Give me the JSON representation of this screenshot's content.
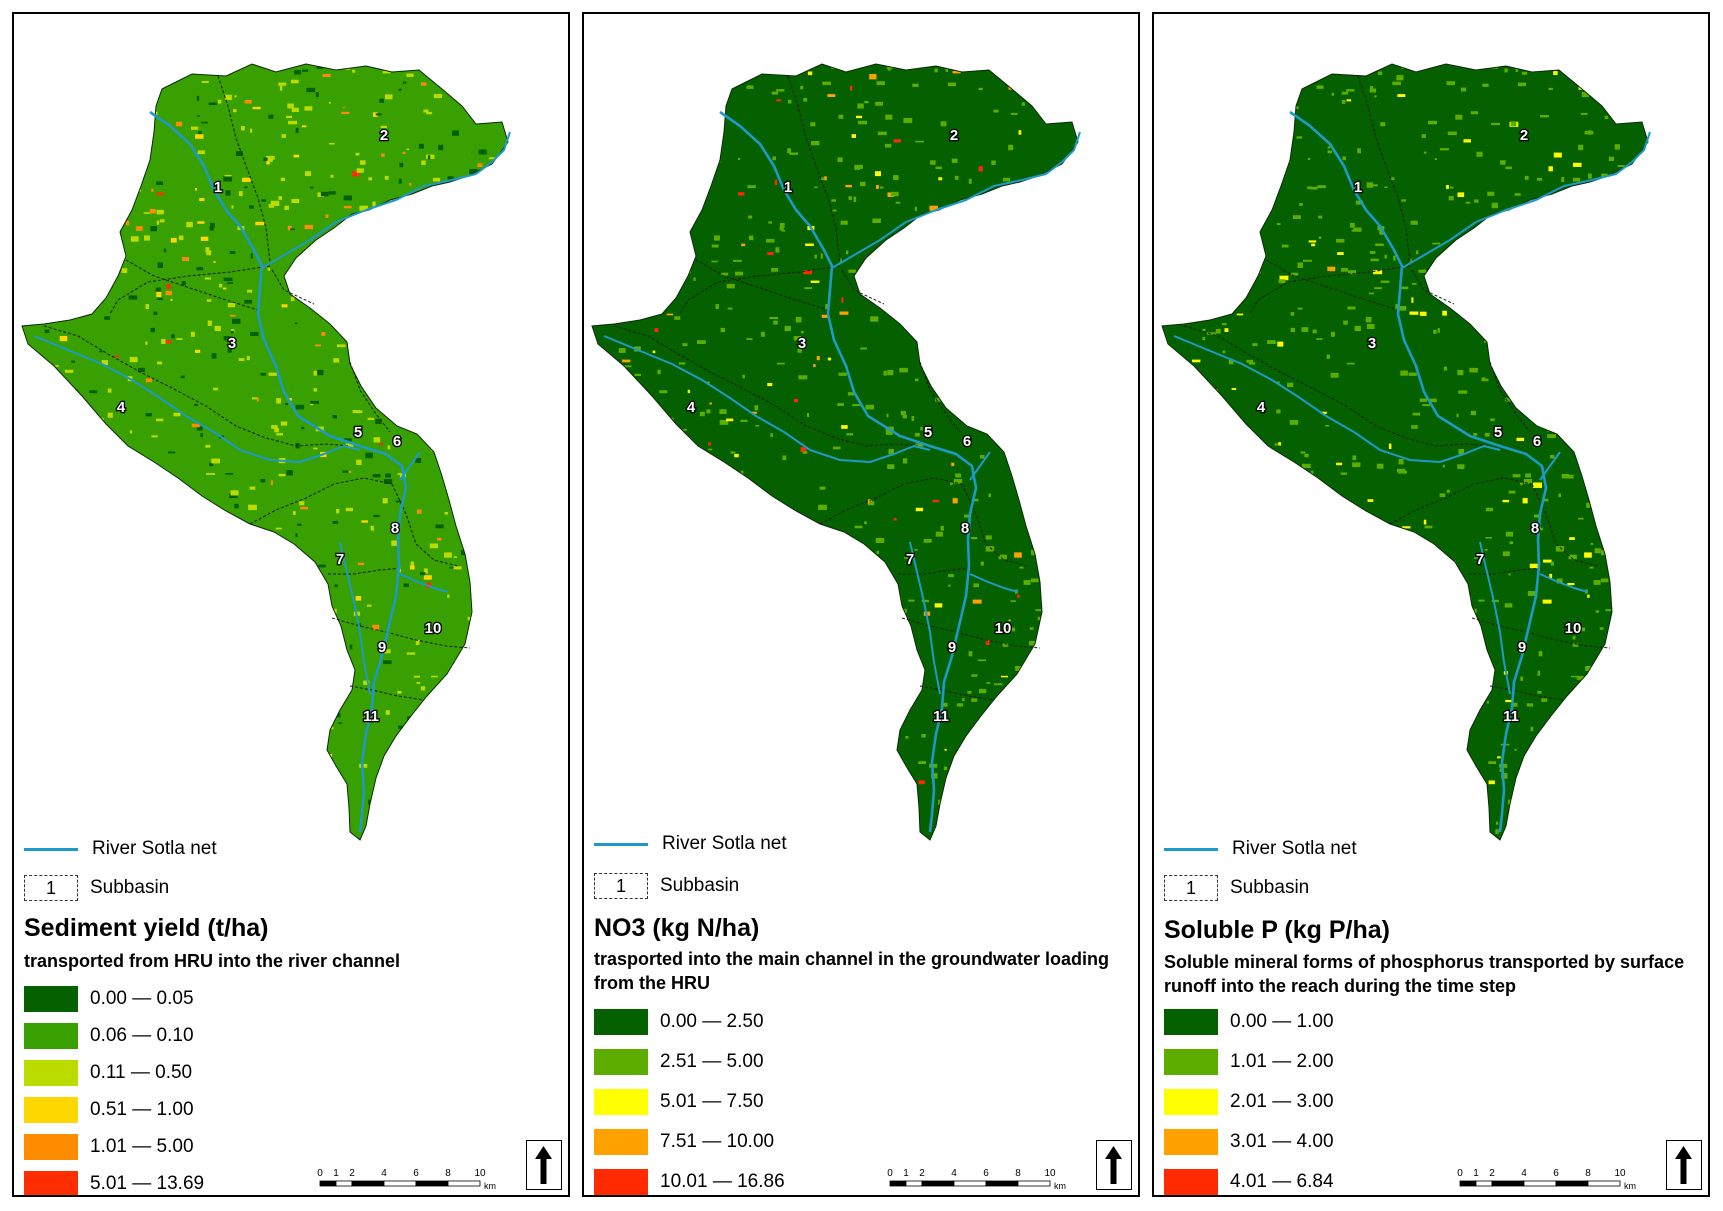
{
  "colors": {
    "river": "#1e9ac9",
    "class_sed": [
      "#056100",
      "#38a000",
      "#bcdc00",
      "#ffd700",
      "#ff8c00",
      "#ff2e00"
    ],
    "class_no3": [
      "#056100",
      "#5cad00",
      "#ffff00",
      "#ffa200",
      "#ff2a00"
    ],
    "class_p": [
      "#056100",
      "#5cad00",
      "#ffff00",
      "#ffa200",
      "#ff2a00"
    ]
  },
  "legend": {
    "river_label": "River Sotla net",
    "subbasin_label": "Subbasin",
    "subbasin_example": "1"
  },
  "scale": {
    "ticks": [
      "0",
      "1",
      "2",
      "4",
      "6",
      "8",
      "10"
    ],
    "unit": "km"
  },
  "subbasins": [
    "1",
    "2",
    "3",
    "4",
    "5",
    "6",
    "7",
    "8",
    "9",
    "10",
    "11"
  ],
  "panels": [
    {
      "title": "Sediment yield (t/ha)",
      "subtitle": "transported from HRU into the river channel",
      "dominant_class": 1,
      "classes": [
        "0.00 — 0.05",
        "0.06 — 0.10",
        "0.11 — 0.50",
        "0.51 — 1.00",
        "1.01 — 5.00",
        "5.01 — 13.69"
      ]
    },
    {
      "title": "NO3 (kg N/ha)",
      "subtitle": "trasported into the main channel in the groundwater loading from the HRU",
      "dominant_class": 0,
      "classes": [
        "0.00 — 2.50",
        "2.51 — 5.00",
        "5.01 — 7.50",
        "7.51 — 10.00",
        "10.01 — 16.86"
      ]
    },
    {
      "title": "Soluble P (kg P/ha)",
      "subtitle": "Soluble mineral forms of phosphorus transported by surface runoff into the reach during the time step",
      "dominant_class": 0,
      "classes": [
        "0.00 — 1.00",
        "1.01 — 2.00",
        "2.01 — 3.00",
        "3.01 — 4.00",
        "4.01 — 6.84"
      ]
    }
  ]
}
